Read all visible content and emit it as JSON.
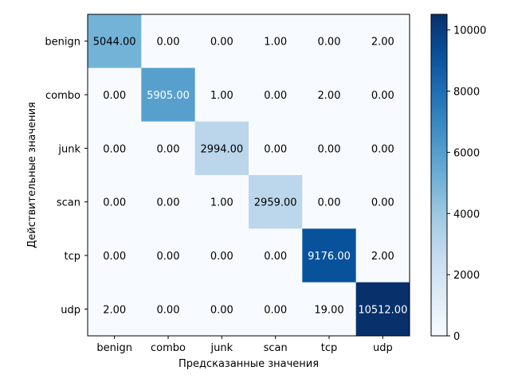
{
  "chart_data": {
    "type": "heatmap",
    "xlabel": "Предсказанные значения",
    "ylabel": "Действительные значения",
    "x_categories": [
      "benign",
      "combo",
      "junk",
      "scan",
      "tcp",
      "udp"
    ],
    "y_categories": [
      "benign",
      "combo",
      "junk",
      "scan",
      "tcp",
      "udp"
    ],
    "matrix": [
      [
        5044,
        0,
        0,
        1,
        0,
        2
      ],
      [
        0,
        5905,
        1,
        0,
        2,
        0
      ],
      [
        0,
        0,
        2994,
        0,
        0,
        0
      ],
      [
        0,
        0,
        1,
        2959,
        0,
        0
      ],
      [
        0,
        0,
        0,
        0,
        9176,
        2
      ],
      [
        2,
        0,
        0,
        0,
        19,
        10512
      ]
    ],
    "value_format": "2 decimals",
    "colormap": "Blues",
    "colorbar": {
      "range": [
        0,
        10512
      ],
      "ticks": [
        0,
        2000,
        4000,
        6000,
        8000,
        10000
      ]
    }
  }
}
